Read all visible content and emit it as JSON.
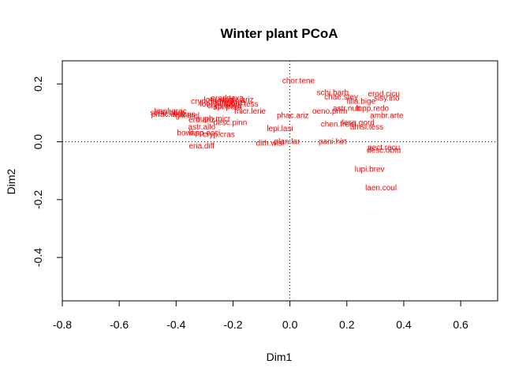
{
  "chart_data": {
    "type": "scatter",
    "title": "Winter plant PCoA",
    "xlabel": "Dim1",
    "ylabel": "Dim2",
    "xlim": [
      -0.8,
      0.73
    ],
    "ylim": [
      -0.55,
      0.28
    ],
    "x_ticks": [
      -0.8,
      -0.6,
      -0.4,
      -0.2,
      0.0,
      0.2,
      0.4,
      0.6
    ],
    "x_tick_labels": [
      "-0.8",
      "-0.6",
      "-0.4",
      "-0.2",
      "0.0",
      "0.2",
      "0.4",
      "0.6"
    ],
    "y_ticks": [
      -0.4,
      -0.2,
      0.0,
      0.2
    ],
    "y_tick_labels": [
      "-0.4",
      "-0.2",
      "0.0",
      "0.2"
    ],
    "reference_lines": {
      "x": 0,
      "y": 0,
      "style": "dotted"
    },
    "label_color": "#ff0000",
    "points": [
      {
        "label": "chor.tene",
        "x": 0.03,
        "y": 0.21
      },
      {
        "label": "schi.barb",
        "x": 0.15,
        "y": 0.17
      },
      {
        "label": "chae.stey",
        "x": 0.18,
        "y": 0.155
      },
      {
        "label": "erod.cicu",
        "x": 0.33,
        "y": 0.165
      },
      {
        "label": "sisy.irio",
        "x": 0.34,
        "y": 0.15
      },
      {
        "label": "filla.bige",
        "x": 0.25,
        "y": 0.14
      },
      {
        "label": "astr.nutt",
        "x": 0.2,
        "y": 0.115
      },
      {
        "label": "oeno.prim",
        "x": 0.14,
        "y": 0.105
      },
      {
        "label": "lupp.redo",
        "x": 0.29,
        "y": 0.115
      },
      {
        "label": "ambr.arte",
        "x": 0.34,
        "y": 0.09
      },
      {
        "label": "phac.ariz",
        "x": 0.01,
        "y": 0.09
      },
      {
        "label": "chen.frem",
        "x": 0.17,
        "y": 0.06
      },
      {
        "label": "lesq.gord",
        "x": 0.24,
        "y": 0.065
      },
      {
        "label": "amsi.tess",
        "x": 0.27,
        "y": 0.05
      },
      {
        "label": "lepi.lasi",
        "x": -0.035,
        "y": 0.045
      },
      {
        "label": "pani.hirt",
        "x": 0.15,
        "y": 0.0
      },
      {
        "label": "plan.lar",
        "x": -0.01,
        "y": 0.0
      },
      {
        "label": "dith.wisl",
        "x": -0.07,
        "y": -0.005
      },
      {
        "label": "pect.recu",
        "x": 0.33,
        "y": -0.02
      },
      {
        "label": "desc.obtu",
        "x": 0.33,
        "y": -0.03
      },
      {
        "label": "lupi.brev",
        "x": 0.28,
        "y": -0.095
      },
      {
        "label": "laen.coul",
        "x": 0.32,
        "y": -0.16
      },
      {
        "label": "erod.texa",
        "x": -0.22,
        "y": 0.15
      },
      {
        "label": "dale.ariz",
        "x": -0.18,
        "y": 0.145
      },
      {
        "label": "lotu.strig",
        "x": -0.25,
        "y": 0.145
      },
      {
        "label": "cryp.barb",
        "x": -0.29,
        "y": 0.14
      },
      {
        "label": "stre.arre",
        "x": -0.21,
        "y": 0.135
      },
      {
        "label": "lotu.humi",
        "x": -0.26,
        "y": 0.13
      },
      {
        "label": "ambl.tess",
        "x": -0.17,
        "y": 0.13
      },
      {
        "label": "cryp.angu",
        "x": -0.23,
        "y": 0.125
      },
      {
        "label": "apl.pera",
        "x": -0.22,
        "y": 0.12
      },
      {
        "label": "micr.lerie",
        "x": -0.14,
        "y": 0.105
      },
      {
        "label": "hapl.grac",
        "x": -0.42,
        "y": 0.105
      },
      {
        "label": "scho.barb",
        "x": -0.43,
        "y": 0.1
      },
      {
        "label": "gili.stel",
        "x": -0.36,
        "y": 0.09
      },
      {
        "label": "phac.distans",
        "x": -0.41,
        "y": 0.095
      },
      {
        "label": "euph.micr",
        "x": -0.27,
        "y": 0.08
      },
      {
        "label": "ero.ariz",
        "x": -0.31,
        "y": 0.075
      },
      {
        "label": "desc.pinn",
        "x": -0.21,
        "y": 0.065
      },
      {
        "label": "astr.allo",
        "x": -0.31,
        "y": 0.05
      },
      {
        "label": "bowl.sp",
        "x": -0.35,
        "y": 0.03
      },
      {
        "label": "cryp.cras",
        "x": -0.25,
        "y": 0.025
      },
      {
        "label": "lapp.occi",
        "x": -0.3,
        "y": 0.03
      },
      {
        "label": "eria.diff",
        "x": -0.31,
        "y": -0.015
      }
    ]
  }
}
